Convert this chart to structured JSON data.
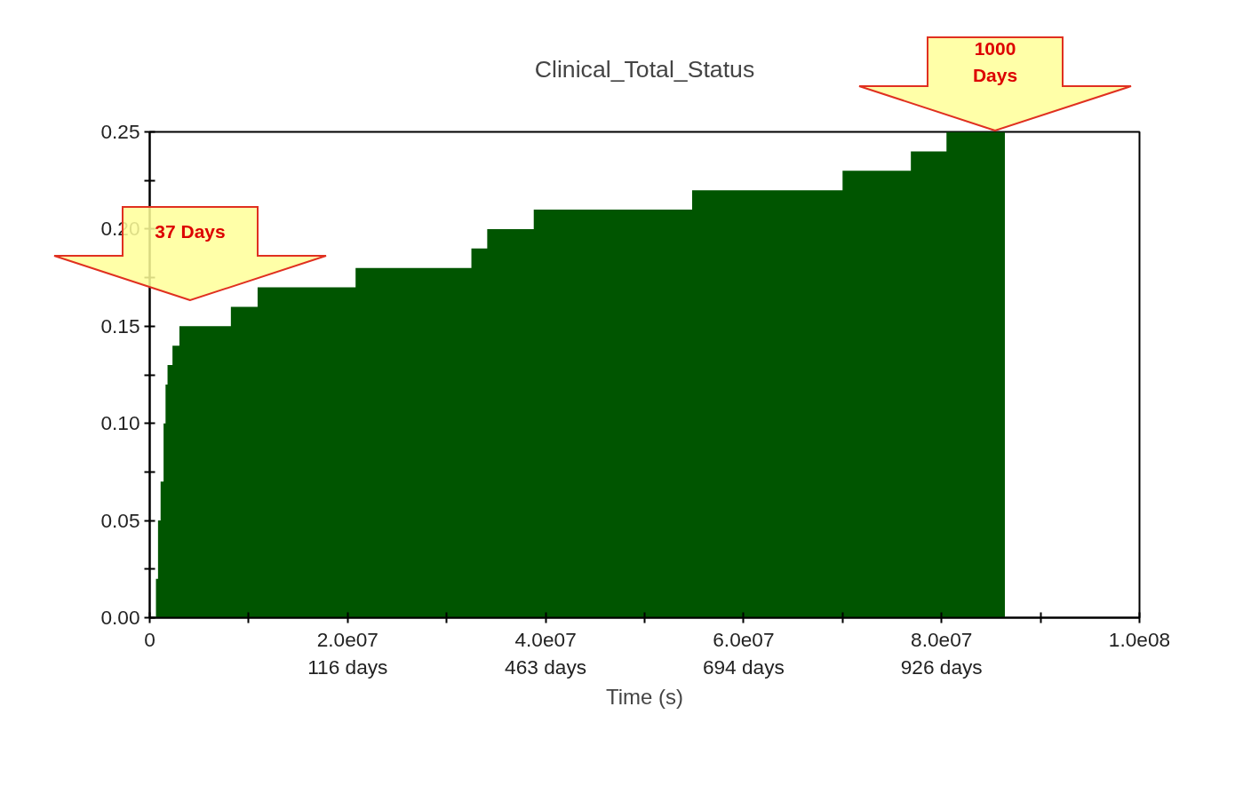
{
  "chart_data": {
    "type": "area",
    "title": "Clinical_Total_Status",
    "xlabel": "Time (s)",
    "x": [
      630000,
      840000,
      1100000,
      1400000,
      1600000,
      1800000,
      2300000,
      3000000,
      8200000,
      10900000,
      20800000,
      32500000,
      34100000,
      38800000,
      54800000,
      70000000,
      76900000,
      80500000,
      86400000
    ],
    "series": [
      {
        "color": "#005500",
        "values": [
          0.02,
          0.05,
          0.07,
          0.1,
          0.12,
          0.13,
          0.14,
          0.15,
          0.16,
          0.17,
          0.18,
          0.19,
          0.2,
          0.21,
          0.22,
          0.23,
          0.24,
          0.25,
          0.25
        ]
      }
    ],
    "xlim": [
      0,
      100000000
    ],
    "ylim": [
      0,
      0.25
    ],
    "xticks": [
      0,
      {
        "value": 10000000,
        "label": null
      },
      {
        "value": 20000000,
        "label": "2.0e07\n116 days"
      },
      {
        "value": 30000000,
        "label": null
      },
      {
        "value": 40000000,
        "label": "4.0e07\n463 days"
      },
      {
        "value": 50000000,
        "label": null
      },
      {
        "value": 60000000,
        "label": "6.0e07\n694 days"
      },
      {
        "value": 70000000,
        "label": null
      },
      {
        "value": 80000000,
        "label": "8.0e07\n926 days"
      },
      {
        "value": 90000000,
        "label": null
      },
      {
        "value": 100000000,
        "label": "1.0e08"
      }
    ],
    "yticks": [
      {
        "value": 0,
        "label": "0.00"
      },
      {
        "value": 0.025,
        "label": null
      },
      {
        "value": 0.05,
        "label": "0.05"
      },
      {
        "value": 0.075,
        "label": null
      },
      {
        "value": 0.1,
        "label": "0.10"
      },
      {
        "value": 0.125,
        "label": null
      },
      {
        "value": 0.15,
        "label": "0.15"
      },
      {
        "value": 0.175,
        "label": null
      },
      {
        "value": 0.2,
        "label": "0.20"
      },
      {
        "value": 0.225,
        "label": null
      },
      {
        "value": 0.25,
        "label": "0.25"
      }
    ],
    "grid": false,
    "annotations": [
      "37 Days",
      "1000\nDays"
    ]
  }
}
